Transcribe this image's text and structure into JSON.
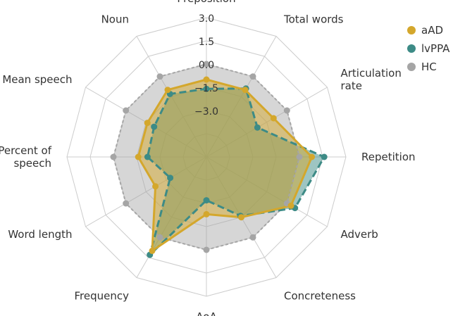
{
  "chart_data": {
    "type": "radar",
    "axes": [
      "Preposition",
      "Total words",
      "Articulation rate",
      "Repetition",
      "Adverb",
      "Concreteness",
      "AoA",
      "Frequency",
      "Word length",
      "Percent of speech",
      "Mean speech",
      "Noun"
    ],
    "axis_label_lines": [
      [
        "Preposition"
      ],
      [
        "Total words"
      ],
      [
        "Articulation",
        "rate"
      ],
      [
        "Repetition"
      ],
      [
        "Adverb"
      ],
      [
        "Concreteness"
      ],
      [
        "AoA"
      ],
      [
        "Frequency"
      ],
      [
        "Word length"
      ],
      [
        "Percent of",
        "speech"
      ],
      [
        "Mean speech"
      ],
      [
        "Noun"
      ]
    ],
    "rlim": [
      -6,
      3
    ],
    "ticks": [
      "3.0",
      "1.5",
      "0.0",
      "−1.5",
      "−3.0"
    ],
    "tick_values": [
      3.0,
      1.5,
      0.0,
      -1.5,
      -3.0
    ],
    "grid": true,
    "legend_position": "top-right",
    "series": [
      {
        "name": "aAD",
        "color": "#d4a72c",
        "values": [
          -1.0,
          -1.0,
          -1.0,
          0.8,
          0.3,
          -1.5,
          -2.3,
          1.0,
          -2.2,
          -1.6,
          -1.6,
          -1.0
        ]
      },
      {
        "name": "lvPPA",
        "color": "#3d8b86",
        "values": [
          -1.6,
          -0.9,
          -2.2,
          1.6,
          0.6,
          -1.6,
          -3.2,
          1.3,
          -3.3,
          -2.2,
          -2.1,
          -1.3
        ]
      },
      {
        "name": "HC",
        "color": "#a5a5a5",
        "values": [
          0.0,
          0.0,
          0.0,
          0.0,
          0.0,
          0.0,
          0.0,
          0.0,
          0.0,
          0.0,
          0.0,
          0.0
        ]
      }
    ]
  }
}
